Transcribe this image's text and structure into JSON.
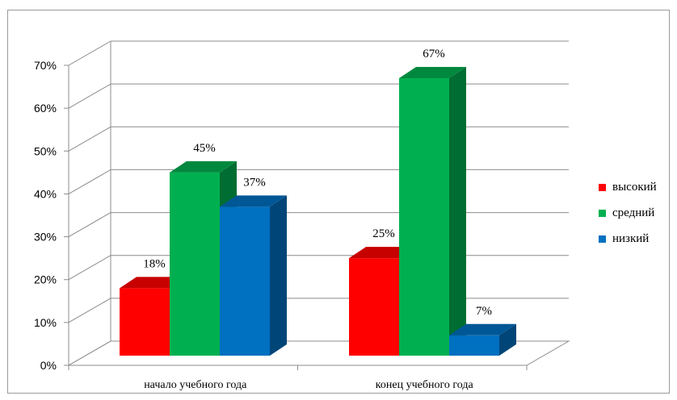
{
  "chart_data": {
    "type": "bar",
    "categories": [
      "начало учебного года",
      "конец учебного года"
    ],
    "series": [
      {
        "name": "высокий",
        "values": [
          18,
          25
        ],
        "labels": [
          "18%",
          "25%"
        ],
        "color": "#ff0000"
      },
      {
        "name": "средний",
        "values": [
          45,
          67
        ],
        "labels": [
          "45%",
          "67%"
        ],
        "color": "#00b050"
      },
      {
        "name": "низкий",
        "values": [
          37,
          7
        ],
        "labels": [
          "37%",
          "7%"
        ],
        "color": "#0070c0"
      }
    ],
    "yticks": [
      "0%",
      "10%",
      "20%",
      "30%",
      "40%",
      "50%",
      "60%",
      "70%"
    ],
    "ylim": [
      0,
      70
    ],
    "grid": true,
    "legend_position": "right",
    "three_d": true
  }
}
